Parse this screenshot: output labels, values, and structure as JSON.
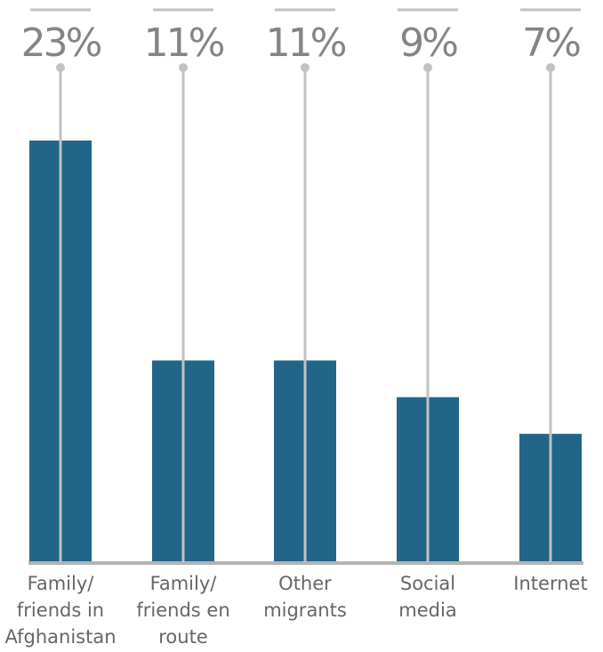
{
  "chart_data": {
    "type": "bar",
    "categories": [
      [
        "Family/",
        "friends in",
        "Afghanistan"
      ],
      [
        "Family/",
        "friends en",
        "route"
      ],
      [
        "Other",
        "migrants"
      ],
      [
        "Social",
        "media"
      ],
      [
        "Internet"
      ]
    ],
    "values": [
      23,
      11,
      11,
      9,
      7
    ],
    "value_labels": [
      "23%",
      "11%",
      "11%",
      "9%",
      "7%"
    ],
    "unit": "%",
    "ylim": [
      0,
      23
    ],
    "grid": false,
    "legend": "none",
    "colors": {
      "bar": "#216689",
      "stem": "#c2c2c2",
      "value_text": "#858585",
      "category_text": "#666666",
      "baseline": "#b3b3b3"
    }
  }
}
